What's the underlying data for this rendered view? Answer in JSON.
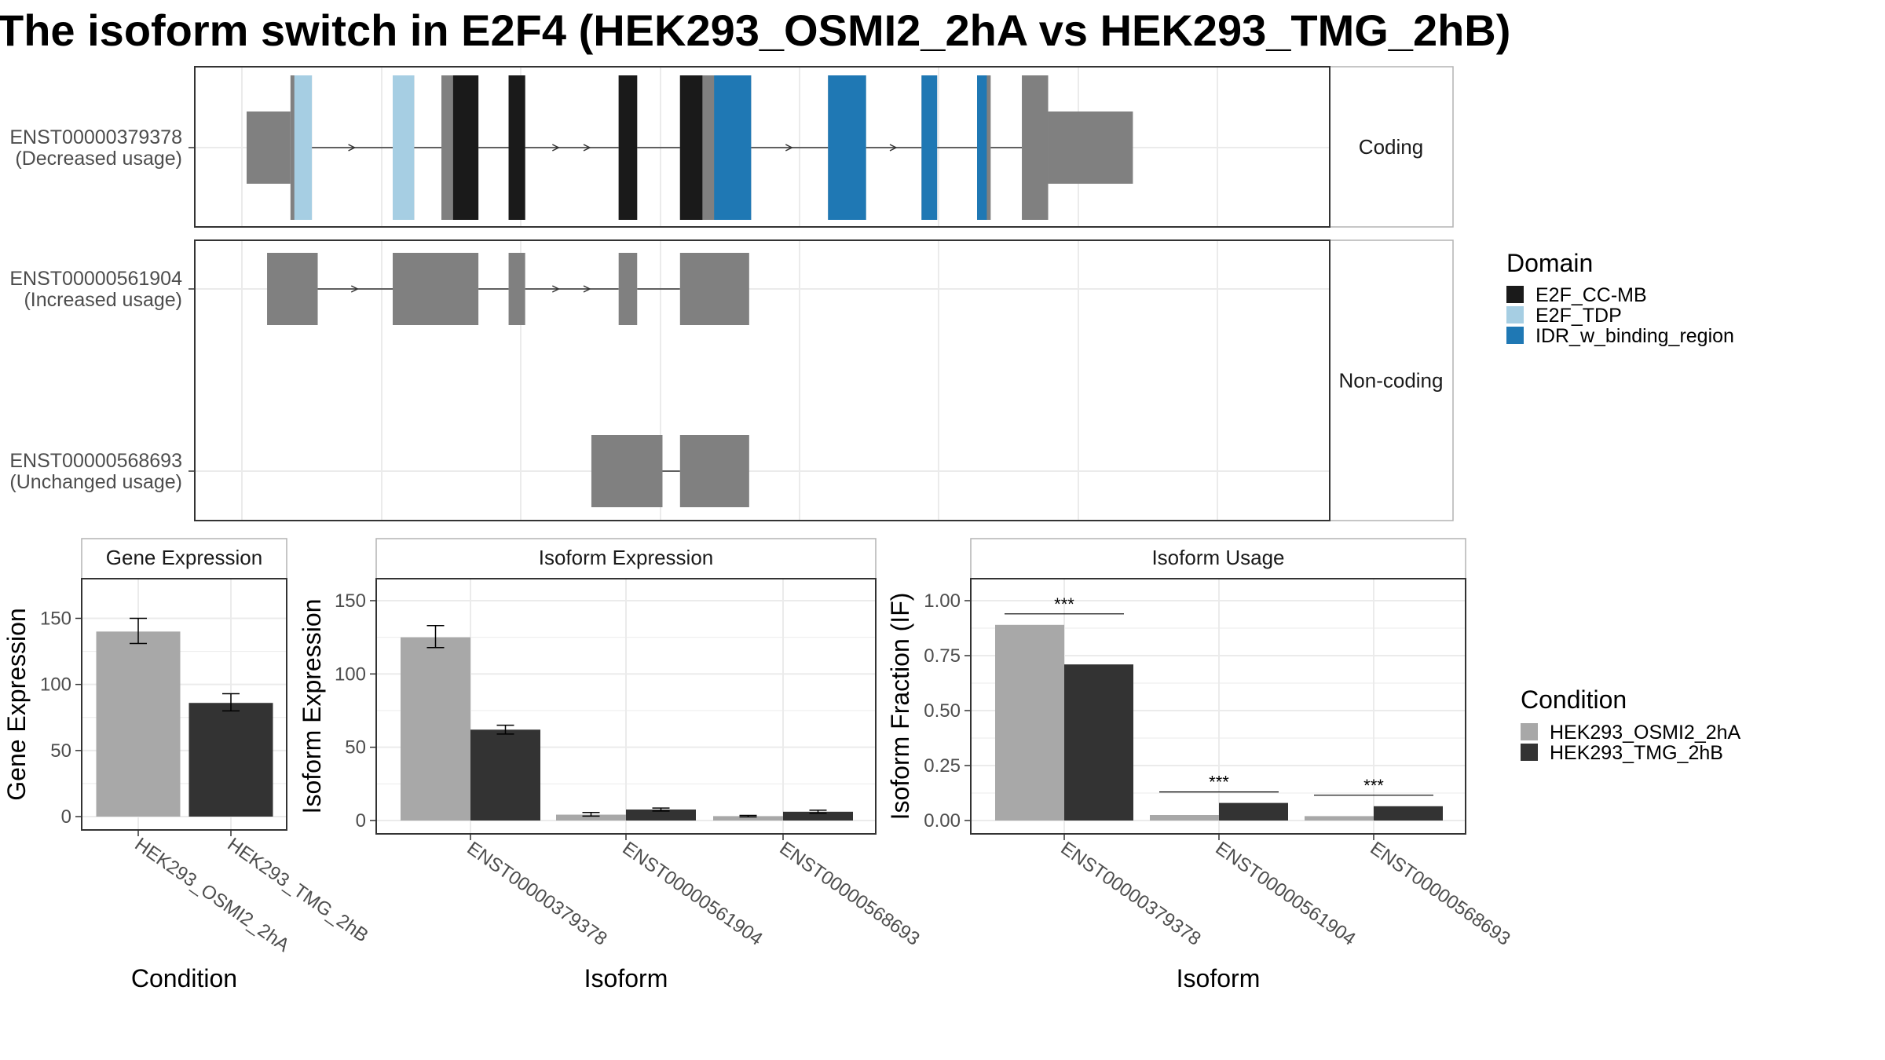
{
  "chart_data": [
    {
      "type": "gene_structure",
      "title": "The isoform switch in E2F4 (HEK293_OSMI2_2hA vs HEK293_TMG_2hB)",
      "facets": [
        "Coding",
        "Non-coding"
      ],
      "legend": {
        "title": "Domain",
        "entries": [
          {
            "name": "E2F_CC-MB",
            "color": "#1a1a1a"
          },
          {
            "name": "E2F_TDP",
            "color": "#a6cee3"
          },
          {
            "name": "IDR_w_binding_region",
            "color": "#1f78b4"
          }
        ]
      },
      "isoforms": [
        {
          "id": "ENST00000379378",
          "label_line1": "ENST00000379378",
          "label_line2": "(Decreased usage)",
          "facet": "Coding",
          "exons": [
            {
              "start": 0.0,
              "end": 4.5,
              "type": "utr"
            },
            {
              "start": 4.5,
              "end": 6.7,
              "type": "cds"
            },
            {
              "start": 15.0,
              "end": 17.2,
              "type": "cds"
            },
            {
              "start": 20.0,
              "end": 23.8,
              "type": "cds"
            },
            {
              "start": 26.9,
              "end": 28.6,
              "type": "cds"
            },
            {
              "start": 38.2,
              "end": 40.1,
              "type": "cds"
            },
            {
              "start": 44.5,
              "end": 51.8,
              "type": "cds"
            },
            {
              "start": 59.7,
              "end": 63.6,
              "type": "cds"
            },
            {
              "start": 69.3,
              "end": 70.9,
              "type": "cds"
            },
            {
              "start": 75.0,
              "end": 76.4,
              "type": "cds"
            },
            {
              "start": 79.6,
              "end": 82.3,
              "type": "cds"
            },
            {
              "start": 82.3,
              "end": 91.0,
              "type": "utr"
            }
          ],
          "domains": [
            {
              "name": "E2F_TDP",
              "start": 4.9,
              "end": 6.7
            },
            {
              "name": "E2F_TDP",
              "start": 15.0,
              "end": 17.2
            },
            {
              "name": "E2F_CC-MB",
              "start": 21.2,
              "end": 23.8
            },
            {
              "name": "E2F_CC-MB",
              "start": 26.9,
              "end": 28.6
            },
            {
              "name": "E2F_CC-MB",
              "start": 38.2,
              "end": 40.1
            },
            {
              "name": "E2F_CC-MB",
              "start": 44.5,
              "end": 46.8
            },
            {
              "name": "IDR_w_binding_region",
              "start": 48.0,
              "end": 51.8
            },
            {
              "name": "IDR_w_binding_region",
              "start": 59.7,
              "end": 63.6
            },
            {
              "name": "IDR_w_binding_region",
              "start": 69.3,
              "end": 70.9
            },
            {
              "name": "IDR_w_binding_region",
              "start": 75.0,
              "end": 76.0
            }
          ]
        },
        {
          "id": "ENST00000561904",
          "label_line1": "ENST00000561904",
          "label_line2": "(Increased usage)",
          "facet": "Non-coding",
          "exons": [
            {
              "start": 2.1,
              "end": 7.3
            },
            {
              "start": 15.0,
              "end": 23.8
            },
            {
              "start": 26.9,
              "end": 28.6
            },
            {
              "start": 38.2,
              "end": 40.1
            },
            {
              "start": 44.5,
              "end": 51.6
            }
          ]
        },
        {
          "id": "ENST00000568693",
          "label_line1": "ENST00000568693",
          "label_line2": "(Unchanged usage)",
          "facet": "Non-coding",
          "exons": [
            {
              "start": 35.4,
              "end": 42.7
            },
            {
              "start": 44.5,
              "end": 51.6
            }
          ]
        }
      ]
    },
    {
      "type": "bar",
      "title": "Gene Expression",
      "xlabel": "Condition",
      "ylabel": "Gene Expression",
      "ylim": [
        0,
        180
      ],
      "yticks": [
        0,
        50,
        100,
        150
      ],
      "categories": [
        "HEK293_OSMI2_2hA",
        "HEK293_TMG_2hB"
      ],
      "values": [
        140,
        86
      ],
      "error_low": [
        131,
        80
      ],
      "error_high": [
        150,
        93
      ],
      "colors": [
        "#a8a8a8",
        "#333333"
      ]
    },
    {
      "type": "bar",
      "title": "Isoform Expression",
      "xlabel": "Isoform",
      "ylabel": "Isoform Expression",
      "ylim": [
        0,
        165
      ],
      "yticks": [
        0,
        50,
        100,
        150
      ],
      "categories": [
        "ENST00000379378",
        "ENST00000561904",
        "ENST00000568693"
      ],
      "series": [
        {
          "name": "HEK293_OSMI2_2hA",
          "color": "#a8a8a8",
          "values": [
            125,
            4,
            3
          ],
          "error_low": [
            118,
            3,
            2.5
          ],
          "error_high": [
            133,
            5.5,
            3.5
          ]
        },
        {
          "name": "HEK293_TMG_2hB",
          "color": "#333333",
          "values": [
            62,
            7.5,
            6
          ],
          "error_low": [
            59,
            6.5,
            5
          ],
          "error_high": [
            65,
            8.5,
            7
          ]
        }
      ]
    },
    {
      "type": "bar",
      "title": "Isoform Usage",
      "xlabel": "Isoform",
      "ylabel": "Isoform Fraction (IF)",
      "ylim": [
        0,
        1.1
      ],
      "yticks": [
        0.0,
        0.25,
        0.5,
        0.75,
        1.0
      ],
      "ytick_labels": [
        "0.00",
        "0.25",
        "0.50",
        "0.75",
        "1.00"
      ],
      "categories": [
        "ENST00000379378",
        "ENST00000561904",
        "ENST00000568693"
      ],
      "series": [
        {
          "name": "HEK293_OSMI2_2hA",
          "color": "#a8a8a8",
          "values": [
            0.89,
            0.025,
            0.02
          ]
        },
        {
          "name": "HEK293_TMG_2hB",
          "color": "#333333",
          "values": [
            0.71,
            0.08,
            0.065
          ]
        }
      ],
      "significance": [
        "***",
        "***",
        "***"
      ],
      "legend": {
        "title": "Condition",
        "entries": [
          {
            "name": "HEK293_OSMI2_2hA",
            "color": "#a8a8a8"
          },
          {
            "name": "HEK293_TMG_2hB",
            "color": "#333333"
          }
        ]
      }
    }
  ],
  "colors": {
    "utr_exon": "#808080",
    "intron": "#333333",
    "panel_border": "#333333",
    "strip_border": "#b3b3b3",
    "grid": "#ebebeb"
  }
}
